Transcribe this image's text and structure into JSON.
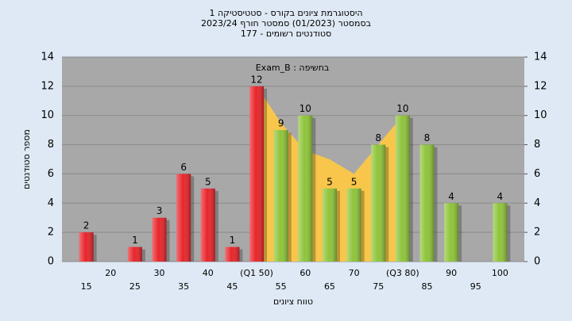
{
  "chart_data": {
    "type": "bar",
    "title": [
      "היסטוגרמת ציונים בקורס - סטטיסטיקה 1",
      "בסמסטר  (01/2023)  סמסטר חורף  2023/24",
      "סטודנטים רשומים - 177"
    ],
    "annotation": "Exam_B : בחשיפה",
    "x_label": "טווח ציונים",
    "y_label": "מספר סטודנטים",
    "categories": [
      "15",
      "20",
      "25",
      "30",
      "35",
      "40",
      "45",
      "(Q1 50)",
      "55",
      "60",
      "65",
      "70",
      "75",
      "(Q3 80)",
      "85",
      "90",
      "95",
      "100"
    ],
    "values": [
      2,
      null,
      1,
      3,
      6,
      5,
      1,
      12,
      9,
      10,
      5,
      5,
      8,
      10,
      8,
      4,
      null,
      4
    ],
    "colors": [
      "#e8252b",
      "#e8252b",
      "#e8252b",
      "#e8252b",
      "#e8252b",
      "#e8252b",
      "#e8252b",
      "#e8252b",
      "#8fc43a",
      "#8fc43a",
      "#8fc43a",
      "#8fc43a",
      "#8fc43a",
      "#8fc43a",
      "#8fc43a",
      "#8fc43a",
      "#8fc43a",
      "#8fc43a"
    ],
    "area": {
      "color": "#f7c64a",
      "values": [
        null,
        null,
        null,
        null,
        null,
        null,
        null,
        12,
        9.5,
        7.6,
        7,
        6,
        8,
        10,
        null,
        null,
        null,
        null
      ]
    },
    "ylim": [
      0,
      14
    ],
    "yticks": [
      0,
      2,
      4,
      6,
      8,
      10,
      12,
      14
    ],
    "y2lim": [
      0,
      14
    ],
    "y2ticks": [
      0,
      2,
      4,
      6,
      8,
      10,
      12,
      14
    ],
    "grid": true
  }
}
